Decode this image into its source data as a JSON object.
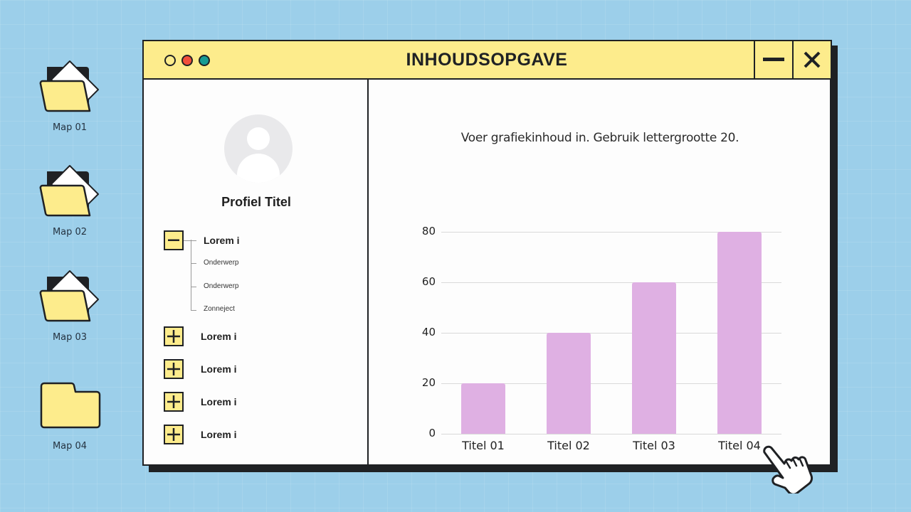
{
  "desktop": {
    "folders": [
      {
        "label": "Map 01",
        "state": "open"
      },
      {
        "label": "Map 02",
        "state": "open"
      },
      {
        "label": "Map 03",
        "state": "open"
      },
      {
        "label": "Map 04",
        "state": "closed"
      }
    ]
  },
  "window": {
    "title": "INHOUDSOPGAVE",
    "controls": {
      "minimize_icon": "minus-icon",
      "close_icon": "close-icon"
    },
    "traffic_lights": [
      "#fdec8c",
      "#f24e3b",
      "#169b94"
    ]
  },
  "sidebar": {
    "profile_title": "Profiel Titel",
    "tree": [
      {
        "label": "Lorem i",
        "expanded": true,
        "children": [
          "Onderwerp",
          "Onderwerp",
          "Zonneject"
        ]
      },
      {
        "label": "Lorem i",
        "expanded": false
      },
      {
        "label": "Lorem i",
        "expanded": false
      },
      {
        "label": "Lorem i",
        "expanded": false
      },
      {
        "label": "Lorem i",
        "expanded": false
      }
    ]
  },
  "chart_data": {
    "type": "bar",
    "title": "Voer grafiekinhoud in. Gebruik lettergrootte 20.",
    "categories": [
      "Titel 01",
      "Titel 02",
      "Titel 03",
      "Titel 04"
    ],
    "values": [
      20,
      40,
      60,
      80
    ],
    "xlabel": "",
    "ylabel": "",
    "ylim": [
      0,
      80
    ],
    "yticks": [
      "0",
      "20",
      "40",
      "60",
      "80"
    ],
    "grid": true,
    "legend": "none",
    "bar_color": "#dfb0e3"
  },
  "colors": {
    "background": "#9ccfea",
    "window_accent": "#fdec8c",
    "outline": "#1f2124"
  }
}
